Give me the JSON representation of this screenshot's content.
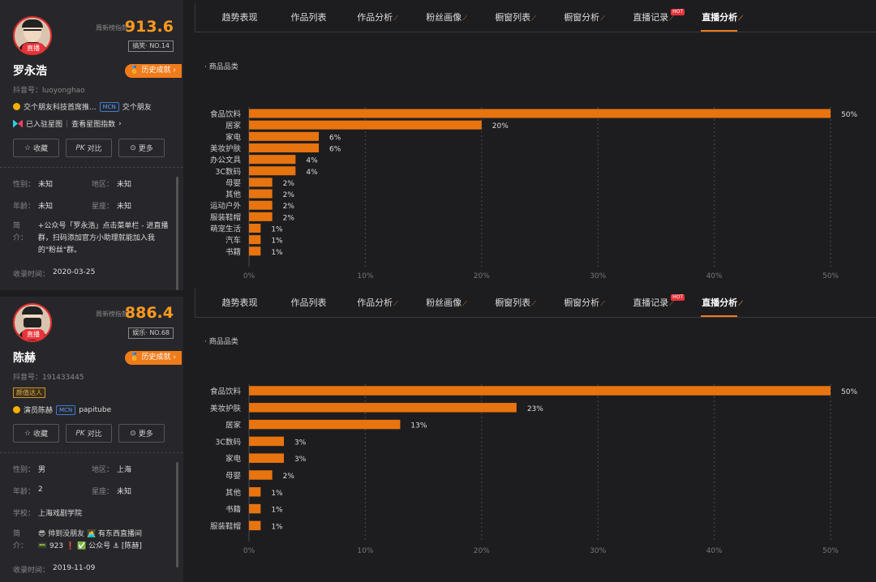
{
  "tabs": [
    "趋势表现",
    "作品列表",
    "作品分析",
    "粉丝画像",
    "橱窗列表",
    "橱窗分析",
    "直播记录",
    "直播分析"
  ],
  "tab_flags": [
    "",
    "",
    "k",
    "k",
    "k",
    "k",
    "k",
    "k"
  ],
  "active_tab": 7,
  "hot_badge": "HOT",
  "accent": "#e8740f",
  "profiles": [
    {
      "live": "直播",
      "index_label": "周新榜指数",
      "index_value": "913.6",
      "rank": "搞笑· NO.14",
      "name": "罗永浩",
      "history_btn": "历史成就",
      "account": "抖音号：luoyonghao",
      "org": "交个朋友科技首席推...",
      "mcn": "MCN",
      "mcn_name": "交个朋友",
      "xingtu": "已入驻星图",
      "xingtu_link": "查看星图指数",
      "actions": [
        "收藏",
        "对比",
        "更多"
      ],
      "gender_label": "性别：",
      "gender": "未知",
      "region_label": "地区：",
      "region": "未知",
      "age_label": "年龄：",
      "age": "未知",
      "zodiac_label": "星座：",
      "zodiac": "未知",
      "bio_label": "简介：",
      "bio": "+公众号「罗永浩」点击菜单栏 - 进直播群，扫码添加官方小助理就能加入我的\"粉丝\"群。",
      "collected_label": "收录时间：",
      "collected": "2020-03-25"
    },
    {
      "live": "直播",
      "index_label": "周新榜指数",
      "index_value": "886.4",
      "rank": "娱乐· NO.68",
      "name": "陈赫",
      "history_btn": "历史成就",
      "account": "抖音号：191433445",
      "talent": "颜值达人",
      "org": "演员陈赫",
      "mcn": "MCN",
      "mcn_name": "papitube",
      "actions": [
        "收藏",
        "对比",
        "更多"
      ],
      "gender_label": "性别：",
      "gender": "男",
      "region_label": "地区：",
      "region": "上海",
      "age_label": "年龄：",
      "age": "2",
      "zodiac_label": "星座：",
      "zodiac": "未知",
      "school_label": "学校：",
      "school": "上海戏剧学院",
      "bio_label": "简介：",
      "bio1": "😎 帅到没朋友 🧑‍💻 有东西直播间",
      "bio2": "📟 923 ❗ ✅ 公众号 ⚓ [陈赫]",
      "collected_label": "收录时间：",
      "collected": "2019-11-09"
    }
  ],
  "chart_data": [
    {
      "type": "bar",
      "title": "商品品类",
      "categories": [
        "食品饮料",
        "居家",
        "家电",
        "美妆护肤",
        "办公文具",
        "3C数码",
        "母婴",
        "其他",
        "运动户外",
        "服装鞋帽",
        "萌宠生活",
        "汽车",
        "书籍"
      ],
      "values": [
        50,
        20,
        6,
        6,
        4,
        4,
        2,
        2,
        2,
        2,
        1,
        1,
        1
      ],
      "value_labels": [
        "50%",
        "20%",
        "6%",
        "6%",
        "4%",
        "4%",
        "2%",
        "2%",
        "2%",
        "2%",
        "1%",
        "1%",
        "1%"
      ],
      "xticks": [
        "0%",
        "10%",
        "20%",
        "30%",
        "40%",
        "50%"
      ],
      "xlim": [
        0,
        50
      ],
      "orientation": "horizontal",
      "grid": true
    },
    {
      "type": "bar",
      "title": "商品品类",
      "categories": [
        "食品饮料",
        "美妆护肤",
        "居家",
        "3C数码",
        "家电",
        "母婴",
        "其他",
        "书籍",
        "服装鞋帽"
      ],
      "values": [
        50,
        23,
        13,
        3,
        3,
        2,
        1,
        1,
        1
      ],
      "value_labels": [
        "50%",
        "23%",
        "13%",
        "3%",
        "3%",
        "2%",
        "1%",
        "1%",
        "1%"
      ],
      "xticks": [
        "0%",
        "10%",
        "20%",
        "30%",
        "40%",
        "50%"
      ],
      "xlim": [
        0,
        50
      ],
      "orientation": "horizontal",
      "grid": true
    }
  ]
}
